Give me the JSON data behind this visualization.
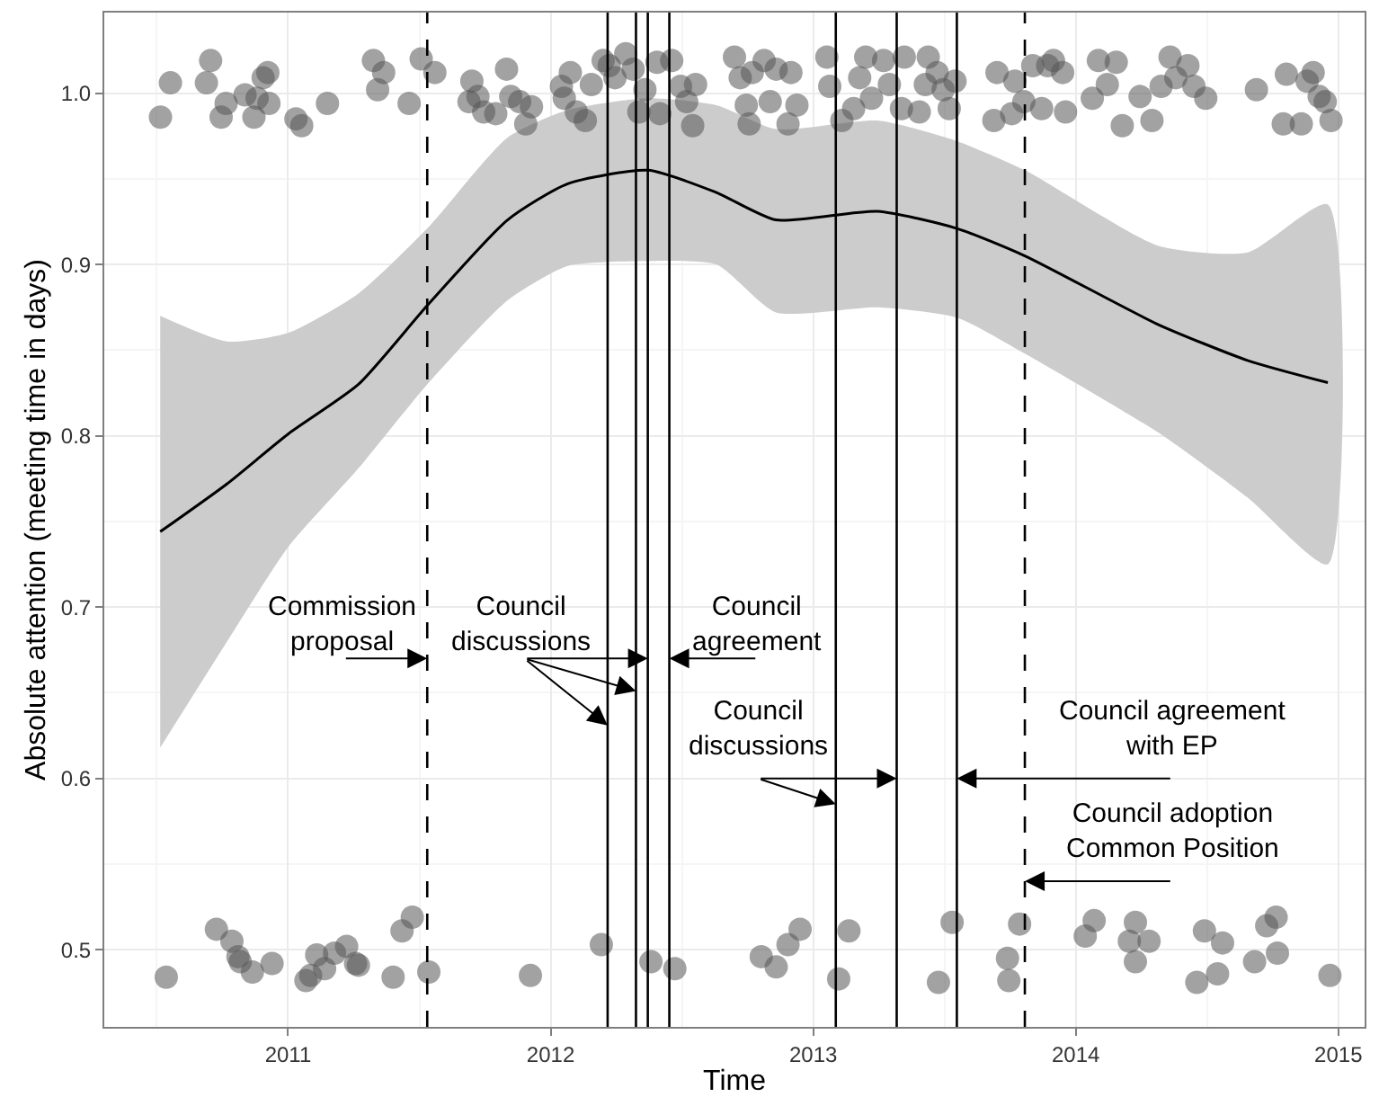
{
  "chart_data": {
    "type": "scatter",
    "xlabel": "Time",
    "ylabel": "Absolute attention (meeting time in days)",
    "xlim": [
      2010.3,
      2015.1
    ],
    "xticks": [
      2011,
      2012,
      2013,
      2014,
      2015
    ],
    "ylim": [
      0.455,
      1.047
    ],
    "yticks": [
      0.5,
      0.6,
      0.7,
      0.8,
      0.9,
      {
        "value": 1.0,
        "label": "1.0"
      }
    ],
    "grid": true,
    "series": [
      {
        "color": "#555555",
        "marker": "circle",
        "x": [
          2010.514,
          2010.552,
          2010.705,
          2010.689,
          2010.745,
          2010.764,
          2010.836,
          2010.87,
          2010.905,
          2010.923,
          2010.882,
          2010.927,
          2011.03,
          2011.052,
          2011.15,
          2011.325,
          2011.341,
          2011.364,
          2011.461,
          2011.507,
          2011.559,
          2011.7,
          2011.689,
          2011.723,
          2011.745,
          2011.791,
          2011.832,
          2011.848,
          2011.882,
          2011.905,
          2011.927,
          2012.041,
          2012.052,
          2012.075,
          2012.098,
          2012.132,
          2012.155,
          2012.2,
          2012.223,
          2012.245,
          2012.286,
          2012.314,
          2012.336,
          2012.359,
          2012.405,
          2012.416,
          2012.461,
          2012.495,
          2012.541,
          2012.552,
          2012.518,
          2012.7,
          2012.722,
          2012.768,
          2012.813,
          2012.859,
          2012.915,
          2012.745,
          2012.836,
          2012.938,
          2012.904,
          2012.756,
          2013.052,
          2013.063,
          2013.109,
          2013.154,
          2013.177,
          2013.2,
          2013.222,
          2013.268,
          2013.29,
          2013.347,
          2013.336,
          2013.404,
          2013.427,
          2013.438,
          2013.472,
          2013.495,
          2013.518,
          2013.54,
          2013.7,
          2013.688,
          2013.756,
          2013.768,
          2013.802,
          2013.836,
          2013.87,
          2013.893,
          2013.915,
          2013.95,
          2013.961,
          2014.063,
          2014.086,
          2014.12,
          2014.154,
          2014.177,
          2014.245,
          2014.29,
          2014.325,
          2014.359,
          2014.381,
          2014.427,
          2014.45,
          2014.495,
          2014.688,
          2014.79,
          2014.802,
          2014.859,
          2014.881,
          2014.904,
          2014.927,
          2014.95,
          2014.972,
          2010.536,
          2010.727,
          2010.786,
          2010.809,
          2010.818,
          2010.864,
          2010.939,
          2011.068,
          2011.086,
          2011.109,
          2011.139,
          2011.177,
          2011.223,
          2011.257,
          2011.268,
          2011.4,
          2011.434,
          2011.473,
          2011.536,
          2011.923,
          2012.193,
          2012.382,
          2012.473,
          2012.802,
          2012.859,
          2012.904,
          2012.95,
          2013.097,
          2013.136,
          2013.477,
          2013.529,
          2013.74,
          2013.745,
          2013.786,
          2014.036,
          2014.07,
          2014.204,
          2014.227,
          2014.227,
          2014.279,
          2014.461,
          2014.49,
          2014.54,
          2014.559,
          2014.681,
          2014.727,
          2014.763,
          2014.768,
          2014.968
        ],
        "values": [
          0.986,
          1.006,
          1.019,
          1.006,
          0.986,
          0.994,
          0.999,
          0.986,
          1.009,
          1.012,
          0.997,
          0.994,
          0.985,
          0.981,
          0.994,
          1.019,
          1.002,
          1.012,
          0.994,
          1.02,
          1.012,
          1.007,
          0.995,
          0.998,
          0.989,
          0.988,
          1.014,
          0.998,
          0.995,
          0.982,
          0.992,
          1.004,
          0.997,
          1.012,
          0.989,
          0.984,
          1.005,
          1.019,
          1.016,
          1.009,
          1.023,
          1.014,
          0.989,
          1.002,
          1.018,
          0.988,
          1.019,
          1.004,
          0.981,
          1.005,
          0.995,
          1.021,
          1.009,
          1.012,
          1.019,
          1.014,
          1.012,
          0.993,
          0.995,
          0.993,
          0.982,
          0.982,
          1.021,
          1.004,
          0.984,
          0.991,
          1.009,
          1.021,
          0.997,
          1.019,
          1.005,
          1.021,
          0.991,
          0.989,
          1.005,
          1.021,
          1.012,
          1.002,
          0.991,
          1.007,
          1.012,
          0.984,
          0.988,
          1.007,
          0.995,
          1.016,
          0.991,
          1.016,
          1.019,
          1.012,
          0.989,
          0.997,
          1.019,
          1.005,
          1.018,
          0.981,
          0.998,
          0.984,
          1.004,
          1.021,
          1.009,
          1.016,
          1.004,
          0.997,
          1.002,
          0.982,
          1.011,
          0.982,
          1.007,
          1.012,
          0.998,
          0.995,
          0.984,
          0.484,
          0.512,
          0.505,
          0.496,
          0.493,
          0.487,
          0.492,
          0.482,
          0.485,
          0.497,
          0.489,
          0.498,
          0.502,
          0.492,
          0.491,
          0.484,
          0.511,
          0.519,
          0.487,
          0.485,
          0.503,
          0.493,
          0.489,
          0.496,
          0.49,
          0.503,
          0.512,
          0.483,
          0.511,
          0.481,
          0.516,
          0.495,
          0.482,
          0.515,
          0.508,
          0.517,
          0.505,
          0.516,
          0.493,
          0.505,
          0.481,
          0.511,
          0.486,
          0.504,
          0.493,
          0.514,
          0.519,
          0.498,
          0.485
        ]
      },
      {
        "type": "line",
        "color": "#000000",
        "marker": "none",
        "x": [
          2010.513,
          2010.768,
          2011.0,
          2011.268,
          2011.53,
          2011.836,
          2012.063,
          2012.37,
          2012.631,
          2012.858,
          2013.245,
          2013.547,
          2013.806,
          2014.313,
          2014.654,
          2014.96
        ],
        "values": [
          0.744,
          0.772,
          0.801,
          0.83,
          0.876,
          0.926,
          0.947,
          0.955,
          0.942,
          0.926,
          0.931,
          0.921,
          0.905,
          0.865,
          0.844,
          0.831
        ],
        "lower": [
          0.618,
          0.68,
          0.735,
          0.781,
          0.83,
          0.879,
          0.899,
          0.902,
          0.9,
          0.872,
          0.875,
          0.869,
          0.848,
          0.802,
          0.764,
          0.725
        ],
        "upper": [
          0.87,
          0.855,
          0.86,
          0.883,
          0.921,
          0.974,
          0.99,
          0.997,
          0.993,
          0.979,
          0.984,
          0.972,
          0.955,
          0.911,
          0.907,
          0.935
        ]
      }
    ],
    "ref_lines": [
      {
        "axis": "x",
        "value": 2011.53,
        "label": "Commission\nproposal",
        "line_style": "dashed",
        "color": "#000000"
      },
      {
        "axis": "x",
        "value": 2012.217,
        "label": "Council\ndiscussions",
        "line_style": "solid",
        "color": "#000000"
      },
      {
        "axis": "x",
        "value": 2012.325,
        "label": null,
        "line_style": "solid",
        "color": "#000000"
      },
      {
        "axis": "x",
        "value": 2012.37,
        "label": null,
        "line_style": "solid",
        "color": "#000000"
      },
      {
        "axis": "x",
        "value": 2012.452,
        "label": "Council\nagreement",
        "line_style": "solid",
        "color": "#000000"
      },
      {
        "axis": "x",
        "value": 2013.086,
        "label": "Council\ndiscussions",
        "line_style": "solid",
        "color": "#000000"
      },
      {
        "axis": "x",
        "value": 2013.318,
        "label": null,
        "line_style": "solid",
        "color": "#000000"
      },
      {
        "axis": "x",
        "value": 2013.547,
        "label": "Council agreement\nwith EP",
        "line_style": "solid",
        "color": "#000000"
      },
      {
        "axis": "x",
        "value": 2013.806,
        "label": "Council adoption\nCommon Position",
        "line_style": "dashed",
        "color": "#000000"
      }
    ]
  }
}
